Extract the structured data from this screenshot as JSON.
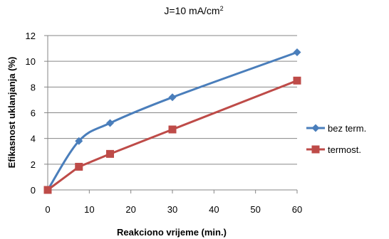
{
  "chart_data": {
    "type": "line",
    "title": "J=10 mA/cm",
    "title_superscript": "2",
    "xlabel": "Reakciono vrijeme (min.)",
    "ylabel": "Efikasnost uklanjanja (%)",
    "xlim": [
      0,
      60
    ],
    "ylim": [
      0,
      12
    ],
    "xticks": [
      "0",
      "10",
      "20",
      "30",
      "40",
      "50",
      "60"
    ],
    "yticks": [
      "0",
      "2",
      "4",
      "6",
      "8",
      "10",
      "12"
    ],
    "grid": "horizontal",
    "legend_position": "right",
    "series": [
      {
        "name": "bez term.",
        "color": "#4a7ebb",
        "marker": "diamond",
        "smooth": true,
        "x": [
          0,
          7.5,
          15,
          30,
          60
        ],
        "y": [
          0,
          3.8,
          5.2,
          7.2,
          10.7
        ]
      },
      {
        "name": "termost.",
        "color": "#be4b48",
        "marker": "square",
        "smooth": false,
        "x": [
          0,
          7.5,
          15,
          30,
          60
        ],
        "y": [
          0,
          1.8,
          2.8,
          4.7,
          8.5
        ]
      }
    ]
  }
}
